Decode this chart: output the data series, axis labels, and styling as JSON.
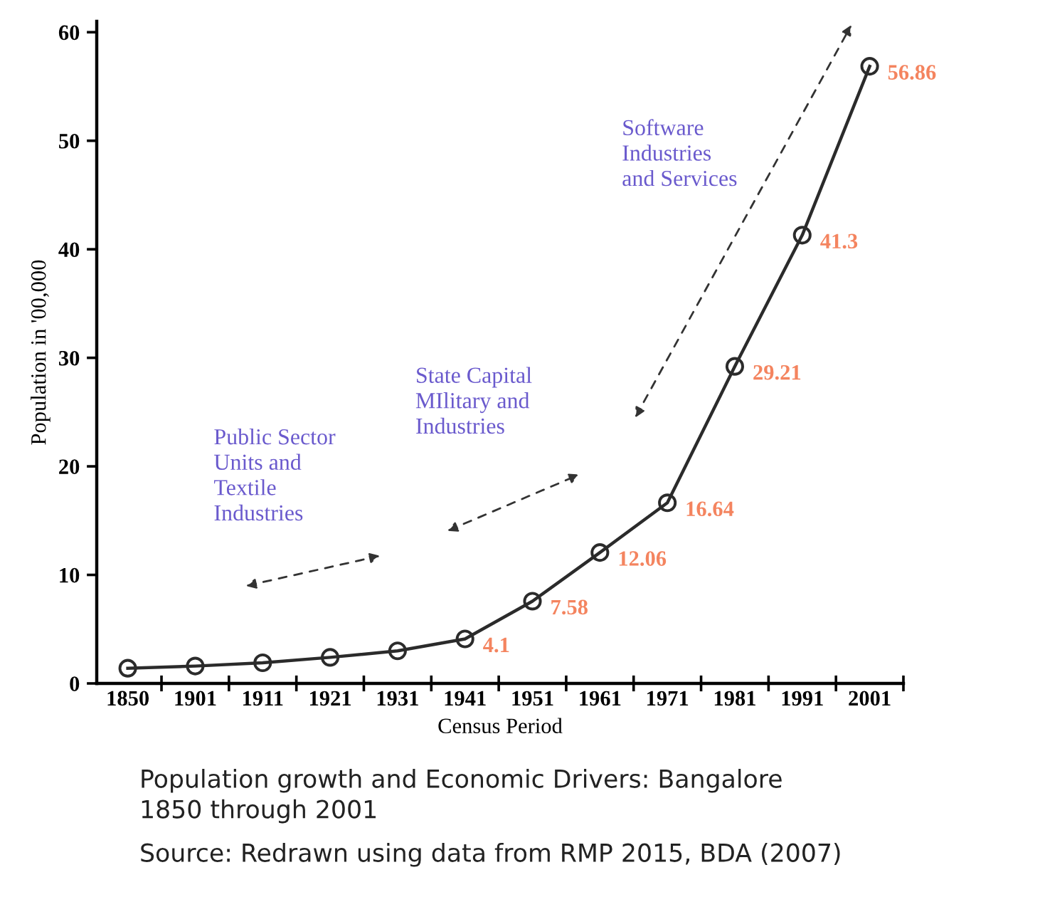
{
  "chart_data": {
    "type": "line",
    "title": "Population growth and Economic Drivers: Bangalore\n1850 through 2001",
    "xlabel": "Census Period",
    "ylabel": "Population in '00,000",
    "categories": [
      "1850",
      "1901",
      "1911",
      "1921",
      "1931",
      "1941",
      "1951",
      "1961",
      "1971",
      "1981",
      "1991",
      "2001"
    ],
    "series": [
      {
        "color": "#2b2b2b",
        "values": [
          1.4,
          1.6,
          1.9,
          2.4,
          3.0,
          4.1,
          7.58,
          12.06,
          16.64,
          29.21,
          41.3,
          56.86
        ],
        "value_labels": [
          null,
          null,
          null,
          null,
          null,
          "4.1",
          "7.58",
          "12.06",
          "16.64",
          "29.21",
          "41.3",
          "56.86"
        ]
      }
    ],
    "marker": "circle",
    "line_style": "solid",
    "grid": false,
    "legend": false,
    "ylim": [
      0,
      61
    ],
    "yticks": [
      0,
      10,
      20,
      30,
      40,
      50,
      60
    ],
    "annotations": [
      "Public Sector\nUnits and\nTextile\nIndustries",
      "State Capital\nMIlitary and\nIndustries",
      "Software\nIndustries\nand Services",
      "Source: Redrawn using data from RMP 2015, BDA (2007)"
    ]
  }
}
